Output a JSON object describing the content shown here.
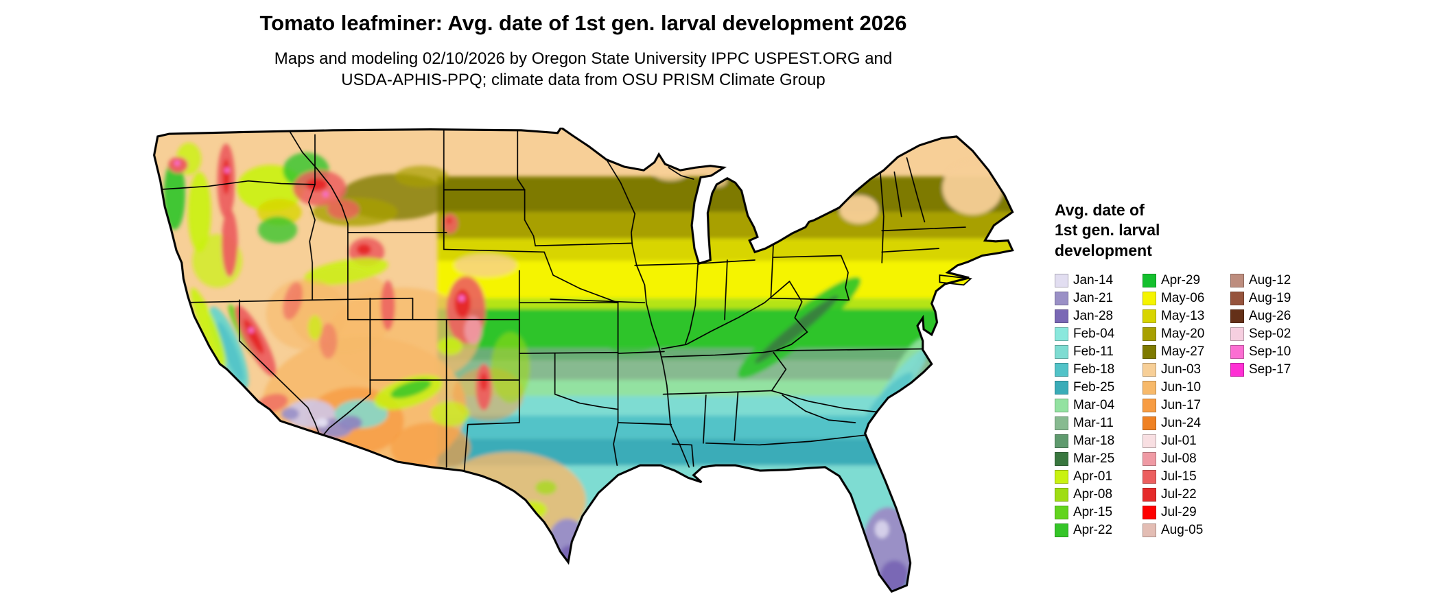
{
  "header": {
    "title": "Tomato leafminer: Avg. date of 1st gen. larval development 2026",
    "subtitle_line1": "Maps and modeling 02/10/2026 by Oregon State University IPPC USPEST.ORG and",
    "subtitle_line2": "USDA-APHIS-PPQ; climate data from OSU PRISM Climate Group"
  },
  "legend": {
    "title_lines": [
      "Avg. date of",
      "1st gen. larval",
      "development"
    ],
    "columns": [
      {
        "items": [
          {
            "label": "Jan-14",
            "color": "#e2def1"
          },
          {
            "label": "Jan-21",
            "color": "#9a90c6"
          },
          {
            "label": "Jan-28",
            "color": "#7a68b5"
          },
          {
            "label": "Feb-04",
            "color": "#8ae8dd"
          },
          {
            "label": "Feb-11",
            "color": "#7edcd2"
          },
          {
            "label": "Feb-18",
            "color": "#52c3c8"
          },
          {
            "label": "Feb-25",
            "color": "#3aacb8"
          },
          {
            "label": "Mar-04",
            "color": "#93e2a1"
          },
          {
            "label": "Mar-11",
            "color": "#87ba90"
          },
          {
            "label": "Mar-18",
            "color": "#5f9a6e"
          },
          {
            "label": "Mar-25",
            "color": "#39773f"
          },
          {
            "label": "Apr-01",
            "color": "#c9f211"
          },
          {
            "label": "Apr-08",
            "color": "#9fdd13"
          },
          {
            "label": "Apr-15",
            "color": "#62d41e"
          },
          {
            "label": "Apr-22",
            "color": "#35c528"
          }
        ]
      },
      {
        "items": [
          {
            "label": "Apr-29",
            "color": "#14c02e"
          },
          {
            "label": "May-06",
            "color": "#f5f400"
          },
          {
            "label": "May-13",
            "color": "#d8d500"
          },
          {
            "label": "May-20",
            "color": "#a8a000"
          },
          {
            "label": "May-27",
            "color": "#7e7a00"
          },
          {
            "label": "Jun-03",
            "color": "#f7cf97"
          },
          {
            "label": "Jun-10",
            "color": "#f7b96a"
          },
          {
            "label": "Jun-17",
            "color": "#f79c43"
          },
          {
            "label": "Jun-24",
            "color": "#ef8123"
          },
          {
            "label": "Jul-01",
            "color": "#f8dfe2"
          },
          {
            "label": "Jul-08",
            "color": "#ef9aa4"
          },
          {
            "label": "Jul-15",
            "color": "#ec5f5f"
          },
          {
            "label": "Jul-22",
            "color": "#e52a2a"
          },
          {
            "label": "Jul-29",
            "color": "#fe0000"
          },
          {
            "label": "Aug-05",
            "color": "#e3bdb4"
          }
        ]
      },
      {
        "items": [
          {
            "label": "Aug-12",
            "color": "#bd8d7e"
          },
          {
            "label": "Aug-19",
            "color": "#96543d"
          },
          {
            "label": "Aug-26",
            "color": "#643018"
          },
          {
            "label": "Sep-02",
            "color": "#f6cfe0"
          },
          {
            "label": "Sep-10",
            "color": "#fb6ed2"
          },
          {
            "label": "Sep-17",
            "color": "#ff2fd4"
          }
        ]
      }
    ]
  },
  "map": {
    "land_base_color": "#f7cf97",
    "outline_color": "#000000",
    "region": "Continental United States"
  }
}
